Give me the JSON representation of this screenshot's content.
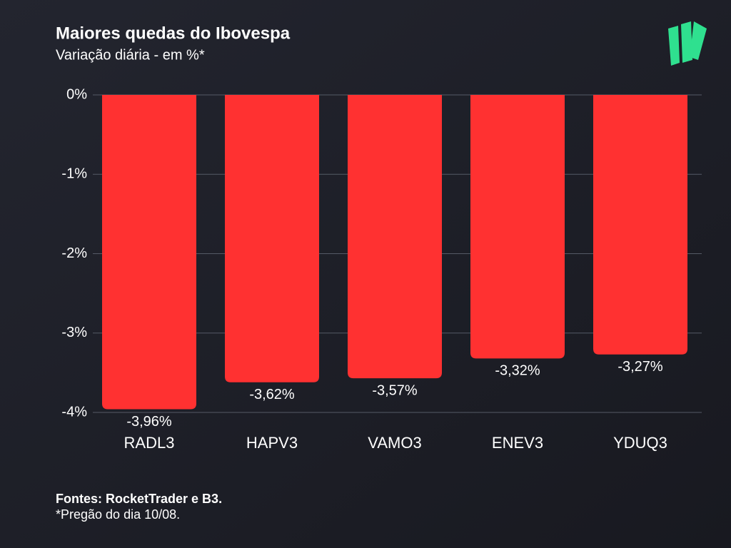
{
  "chart_data": {
    "type": "bar",
    "title": "Maiores quedas do Ibovespa",
    "subtitle": "Variação diária - em %*",
    "categories": [
      "RADL3",
      "HAPV3",
      "VAMO3",
      "ENEV3",
      "YDUQ3"
    ],
    "values": [
      -3.96,
      -3.62,
      -3.57,
      -3.32,
      -3.27
    ],
    "value_labels": [
      "-3,96%",
      "-3,62%",
      "-3,57%",
      "-3,32%",
      "-3,27%"
    ],
    "color": "#ff3131",
    "ylim": [
      -4,
      0
    ],
    "yticks": [
      {
        "value": 0,
        "label": "0%"
      },
      {
        "value": -1,
        "label": "-1%"
      },
      {
        "value": -2,
        "label": "-2%"
      },
      {
        "value": -3,
        "label": "-3%"
      },
      {
        "value": -4,
        "label": "-4%"
      }
    ],
    "grid": true,
    "source": "Fontes: RocketTrader e B3.",
    "note": "*Pregão do dia 10/08."
  }
}
